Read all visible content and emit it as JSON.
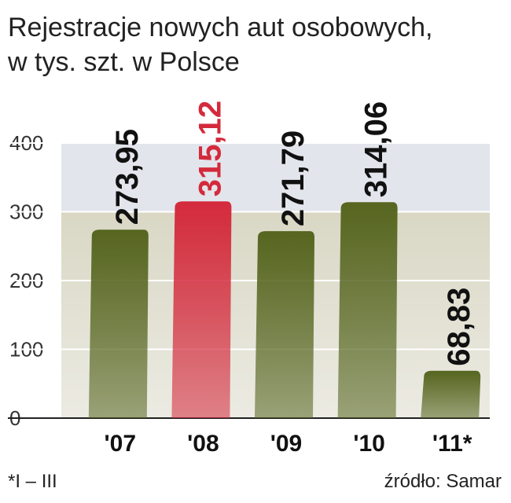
{
  "chart_data": {
    "type": "bar",
    "title": [
      "Rejestracje nowych aut osobowych,",
      "w tys. szt. w Polsce"
    ],
    "categories": [
      "'07",
      "'08",
      "'09",
      "'10",
      "'11*"
    ],
    "values": [
      273.95,
      315.12,
      271.79,
      314.06,
      68.83
    ],
    "value_labels": [
      "273,95",
      "315,12",
      "271,79",
      "314,06",
      "68,83"
    ],
    "colors": [
      "#56651f",
      "#d42a3c",
      "#56651f",
      "#56651f",
      "#56651f"
    ],
    "label_colors": [
      "#111111",
      "#d42a3c",
      "#111111",
      "#111111",
      "#111111"
    ],
    "ylim": [
      0,
      400
    ],
    "yticks": [
      0,
      100,
      200,
      300,
      400
    ],
    "grid": true,
    "footnote": "*I – III",
    "source": "źródło: Samar"
  }
}
